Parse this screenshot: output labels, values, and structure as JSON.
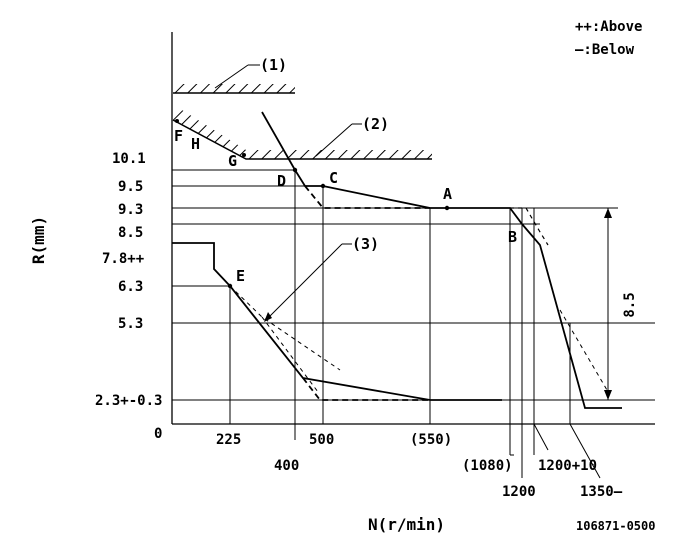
{
  "legend": {
    "above": "++:Above",
    "below": "—:Below"
  },
  "callouts": {
    "c1": "(1)",
    "c2": "(2)",
    "c3": "(3)"
  },
  "points": {
    "A": "A",
    "B": "B",
    "C": "C",
    "D": "D",
    "E": "E",
    "F": "F",
    "G": "G",
    "H": "H"
  },
  "y_axis": {
    "title": "R(mm)",
    "ticks": [
      "10.1",
      "9.5",
      "9.3",
      "8.5",
      "7.8++",
      "6.3",
      "5.3",
      "2.3+-0.3",
      "0"
    ]
  },
  "x_axis": {
    "title": "N(r/min)",
    "ticks": [
      "225",
      "400",
      "500",
      "(550)",
      "(1080)",
      "1200",
      "1200+10",
      "1350—"
    ]
  },
  "dimension": "8.5",
  "drawing_code": "106871-0500"
}
